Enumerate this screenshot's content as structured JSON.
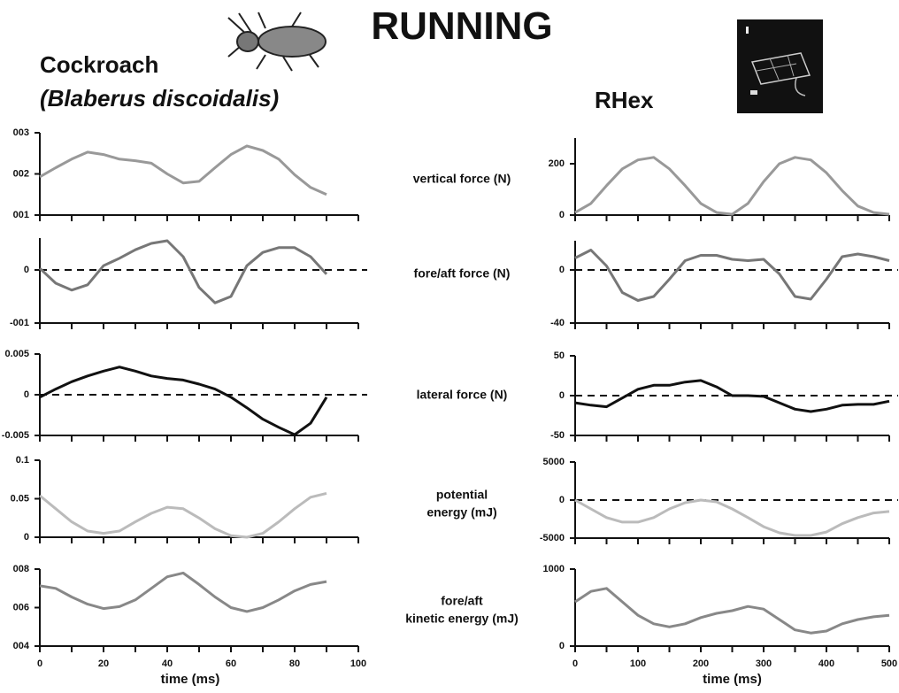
{
  "title": "RUNNING",
  "left_heading": "Cockroach",
  "left_subheading": "(Blaberus discoidalis)",
  "right_heading": "RHex",
  "row_labels": [
    [
      "vertical force (N)"
    ],
    [
      "fore/aft force (N)"
    ],
    [
      "lateral force (N)"
    ],
    [
      "potential",
      "energy (mJ)"
    ],
    [
      "fore/aft",
      "kinetic energy (mJ)"
    ]
  ],
  "chart_data": [
    {
      "type": "line",
      "color": "#999999",
      "x": [
        0,
        5,
        10,
        15,
        20,
        25,
        30,
        35,
        40,
        45,
        50,
        55,
        60,
        65,
        70,
        75,
        80,
        85,
        90
      ],
      "values": [
        0.0193,
        0.0215,
        0.0236,
        0.0253,
        0.0247,
        0.0236,
        0.0232,
        0.0226,
        0.02,
        0.0178,
        0.0182,
        0.0215,
        0.0247,
        0.0268,
        0.0257,
        0.0236,
        0.0198,
        0.0167,
        0.015
      ],
      "xlim": [
        0,
        100
      ],
      "ylim": [
        0.01,
        0.03
      ],
      "xticks": [
        0,
        20,
        40,
        60,
        80,
        100
      ],
      "minor_xticks": [
        10,
        30,
        50,
        70,
        90
      ],
      "yticks": [
        {
          "value": 0.03,
          "label": "003"
        },
        {
          "value": 0.02,
          "label": "002"
        },
        {
          "value": 0.01,
          "label": "001"
        }
      ],
      "zero_line": false
    },
    {
      "type": "line",
      "color": "#777777",
      "x": [
        0,
        5,
        10,
        15,
        20,
        25,
        30,
        35,
        40,
        45,
        50,
        55,
        60,
        65,
        70,
        75,
        80,
        85,
        90
      ],
      "values": [
        0.0003,
        -0.0025,
        -0.0038,
        -0.0028,
        0.0008,
        0.0022,
        0.0038,
        0.005,
        0.0055,
        0.0025,
        -0.0033,
        -0.0062,
        -0.005,
        0.0008,
        0.0033,
        0.0042,
        0.0042,
        0.0025,
        -0.0008
      ],
      "xlim": [
        0,
        100
      ],
      "ylim": [
        -0.01,
        0.006
      ],
      "xticks": [
        0,
        20,
        40,
        60,
        80,
        100
      ],
      "minor_xticks": [
        10,
        30,
        50,
        70,
        90
      ],
      "yticks": [
        0,
        {
          "value": -0.01,
          "label": "-001"
        }
      ],
      "zero_line": true
    },
    {
      "type": "line",
      "color": "#111111",
      "x": [
        0,
        5,
        10,
        15,
        20,
        25,
        30,
        35,
        40,
        45,
        50,
        55,
        60,
        65,
        70,
        75,
        80,
        85,
        90
      ],
      "values": [
        -0.0003,
        0.0007,
        0.0016,
        0.0023,
        0.0029,
        0.0034,
        0.0029,
        0.0023,
        0.002,
        0.0018,
        0.0013,
        0.0007,
        -0.0003,
        -0.0016,
        -0.003,
        -0.004,
        -0.0049,
        -0.0035,
        -0.0003
      ],
      "xlim": [
        0,
        100
      ],
      "ylim": [
        -0.005,
        0.005
      ],
      "xticks": [
        0,
        20,
        40,
        60,
        80,
        100
      ],
      "minor_xticks": [
        10,
        30,
        50,
        70,
        90
      ],
      "yticks": [
        0.005,
        0,
        -0.005
      ],
      "zero_line": true
    },
    {
      "type": "line",
      "color": "#bbbbbb",
      "x": [
        0,
        5,
        10,
        15,
        20,
        25,
        30,
        35,
        40,
        45,
        50,
        55,
        60,
        65,
        70,
        75,
        80,
        85,
        90
      ],
      "values": [
        0.054,
        0.037,
        0.02,
        0.008,
        0.005,
        0.008,
        0.02,
        0.031,
        0.039,
        0.037,
        0.025,
        0.011,
        0.002,
        0,
        0.005,
        0.02,
        0.037,
        0.052,
        0.057
      ],
      "xlim": [
        0,
        100
      ],
      "ylim": [
        0,
        0.1
      ],
      "xticks": [
        0,
        20,
        40,
        60,
        80,
        100
      ],
      "minor_xticks": [
        10,
        30,
        50,
        70,
        90
      ],
      "yticks": [
        0.1,
        0.05,
        0
      ],
      "zero_line": false
    },
    {
      "type": "line",
      "color": "#888888",
      "x": [
        0,
        5,
        10,
        15,
        20,
        25,
        30,
        35,
        40,
        45,
        50,
        55,
        60,
        65,
        70,
        75,
        80,
        85,
        90
      ],
      "values": [
        0.0713,
        0.07,
        0.0655,
        0.0618,
        0.0595,
        0.0605,
        0.064,
        0.07,
        0.076,
        0.078,
        0.072,
        0.0655,
        0.06,
        0.058,
        0.06,
        0.064,
        0.0687,
        0.072,
        0.0735
      ],
      "xlim": [
        0,
        100
      ],
      "ylim": [
        0.04,
        0.08
      ],
      "xticks": [
        0,
        20,
        40,
        60,
        80,
        100
      ],
      "minor_xticks": [
        10,
        30,
        50,
        70,
        90
      ],
      "yticks": [
        {
          "value": 0.08,
          "label": "008"
        },
        {
          "value": 0.06,
          "label": "006"
        },
        {
          "value": 0.04,
          "label": "004"
        }
      ],
      "zero_line": false,
      "xlabel": "time (ms)"
    },
    {
      "type": "line",
      "color": "#999999",
      "x": [
        0,
        25,
        50,
        75,
        100,
        125,
        150,
        175,
        200,
        225,
        250,
        275,
        300,
        325,
        350,
        375,
        400,
        425,
        450,
        475,
        500
      ],
      "values": [
        10,
        45,
        115,
        180,
        215,
        225,
        180,
        115,
        45,
        10,
        3,
        45,
        130,
        200,
        225,
        215,
        165,
        95,
        35,
        10,
        3
      ],
      "xlim": [
        0,
        500
      ],
      "ylim": [
        0,
        300
      ],
      "xticks": [
        0,
        100,
        200,
        300,
        400,
        500
      ],
      "minor_xticks": [
        50,
        150,
        250,
        350,
        450
      ],
      "yticks": [
        200,
        0
      ],
      "zero_line": false
    },
    {
      "type": "line",
      "color": "#777777",
      "x": [
        0,
        25,
        50,
        75,
        100,
        125,
        150,
        175,
        200,
        225,
        250,
        275,
        300,
        325,
        350,
        375,
        400,
        425,
        450,
        475,
        500
      ],
      "values": [
        9,
        15,
        3,
        -17,
        -23,
        -20,
        -7,
        7,
        11,
        11,
        8,
        7,
        8,
        -3,
        -20,
        -22,
        -7,
        10,
        12,
        10,
        7
      ],
      "xlim": [
        0,
        500
      ],
      "ylim": [
        -40,
        22
      ],
      "xticks": [
        0,
        100,
        200,
        300,
        400,
        500
      ],
      "minor_xticks": [
        50,
        150,
        250,
        350,
        450
      ],
      "yticks": [
        0,
        -40
      ],
      "zero_line": true
    },
    {
      "type": "line",
      "color": "#111111",
      "x": [
        0,
        25,
        50,
        75,
        100,
        125,
        150,
        175,
        200,
        225,
        250,
        275,
        300,
        325,
        350,
        375,
        400,
        425,
        450,
        475,
        500
      ],
      "values": [
        -9,
        -12,
        -14,
        -3,
        8,
        13,
        13,
        17,
        19,
        11,
        0,
        0,
        -1,
        -9,
        -17,
        -20,
        -17,
        -12,
        -11,
        -11,
        -7
      ],
      "xlim": [
        0,
        500
      ],
      "ylim": [
        -50,
        50
      ],
      "xticks": [
        0,
        100,
        200,
        300,
        400,
        500
      ],
      "minor_xticks": [
        50,
        150,
        250,
        350,
        450
      ],
      "yticks": [
        50,
        0,
        -50
      ],
      "zero_line": true
    },
    {
      "type": "line",
      "color": "#bbbbbb",
      "x": [
        0,
        25,
        50,
        75,
        100,
        125,
        150,
        175,
        200,
        225,
        250,
        275,
        300,
        325,
        350,
        375,
        400,
        425,
        450,
        475,
        500
      ],
      "values": [
        0,
        -1160,
        -2300,
        -2900,
        -2900,
        -2300,
        -1160,
        -350,
        0,
        -230,
        -1160,
        -2300,
        -3500,
        -4300,
        -4650,
        -4650,
        -4200,
        -3100,
        -2300,
        -1700,
        -1500
      ],
      "xlim": [
        0,
        500
      ],
      "ylim": [
        -5000,
        5000
      ],
      "xticks": [
        0,
        100,
        200,
        300,
        400,
        500
      ],
      "minor_xticks": [
        50,
        150,
        250,
        350,
        450
      ],
      "yticks": [
        5000,
        0,
        -5000
      ],
      "zero_line": true
    },
    {
      "type": "line",
      "color": "#888888",
      "x": [
        0,
        25,
        50,
        75,
        100,
        125,
        150,
        175,
        200,
        225,
        250,
        275,
        300,
        325,
        350,
        375,
        400,
        425,
        450,
        475,
        500
      ],
      "values": [
        575,
        710,
        750,
        575,
        400,
        290,
        250,
        290,
        370,
        425,
        460,
        515,
        480,
        345,
        210,
        170,
        195,
        290,
        345,
        380,
        400
      ],
      "xlim": [
        0,
        500
      ],
      "ylim": [
        0,
        1000
      ],
      "xticks": [
        0,
        100,
        200,
        300,
        400,
        500
      ],
      "minor_xticks": [
        50,
        150,
        250,
        350,
        450
      ],
      "yticks": [
        1000,
        0
      ],
      "zero_line": false,
      "xlabel": "time (ms)"
    }
  ]
}
